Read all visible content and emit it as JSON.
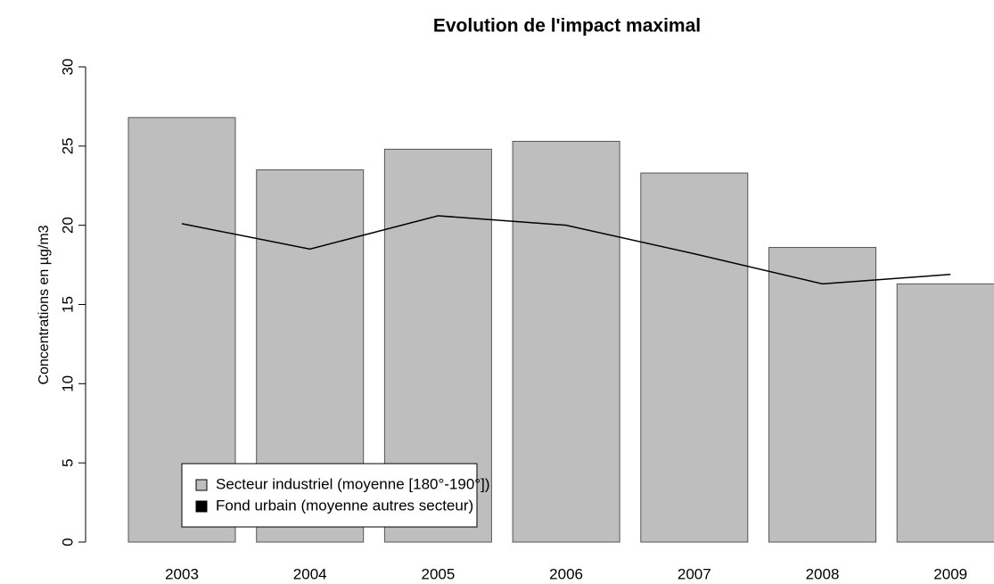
{
  "chart_data": {
    "type": "bar",
    "title": "Evolution de l'impact maximal",
    "y_label": "Concentrations en µg/m3",
    "categories": [
      "2003",
      "2004",
      "2005",
      "2006",
      "2007",
      "2008",
      "2009"
    ],
    "series": [
      {
        "name": "Secteur industriel (moyenne [180°-190°])",
        "type": "bar",
        "color": "#bebebe",
        "values": [
          26.8,
          23.5,
          24.8,
          25.3,
          23.3,
          18.6,
          16.3
        ]
      },
      {
        "name": "Fond urbain (moyenne autres secteur)",
        "type": "line",
        "color": "#000000",
        "values": [
          20.1,
          18.5,
          20.6,
          20.0,
          18.2,
          16.3,
          16.9
        ]
      }
    ],
    "ylim": [
      0,
      30
    ],
    "yticks": [
      0,
      5,
      10,
      15,
      20,
      25,
      30
    ],
    "legend": "bottom-left"
  }
}
